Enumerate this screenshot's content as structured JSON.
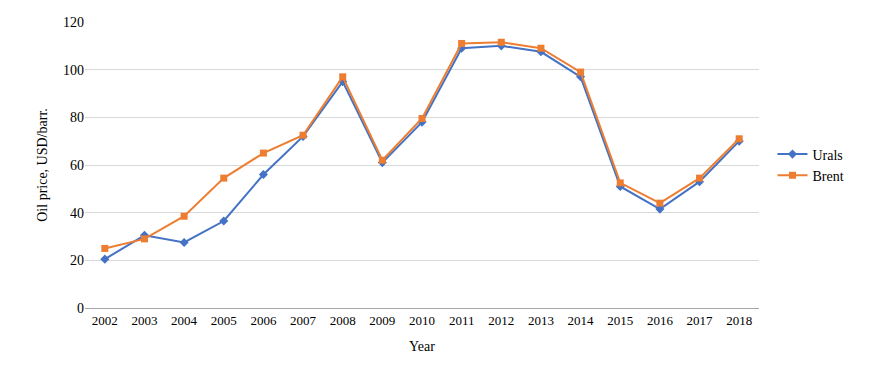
{
  "chart_data": {
    "type": "line",
    "x_label": "Year",
    "y_label": "Oil price, USD/barr.",
    "categories": [
      "2002",
      "2003",
      "2004",
      "2005",
      "2006",
      "2007",
      "2008",
      "2009",
      "2010",
      "2011",
      "2012",
      "2013",
      "2014",
      "2015",
      "2016",
      "2017",
      "2018"
    ],
    "series": [
      {
        "name": "Urals",
        "color": "#4472c4",
        "marker": "diamond",
        "line_style": "solid",
        "values": [
          20.5,
          30.5,
          27.5,
          36.5,
          56,
          72,
          95,
          61,
          78,
          109,
          110,
          107.5,
          97,
          51,
          41.5,
          53,
          70
        ]
      },
      {
        "name": "Brent",
        "color": "#ed7d31",
        "marker": "square",
        "line_style": "solid",
        "values": [
          25,
          29,
          38.5,
          54.5,
          65,
          72.5,
          97,
          62,
          79.5,
          111,
          111.5,
          109,
          99,
          52.5,
          44,
          54.5,
          71
        ]
      }
    ],
    "ylim": [
      0,
      120
    ],
    "yticks": [
      0,
      20,
      40,
      60,
      80,
      100,
      120
    ],
    "grid": true,
    "legend": "right"
  }
}
